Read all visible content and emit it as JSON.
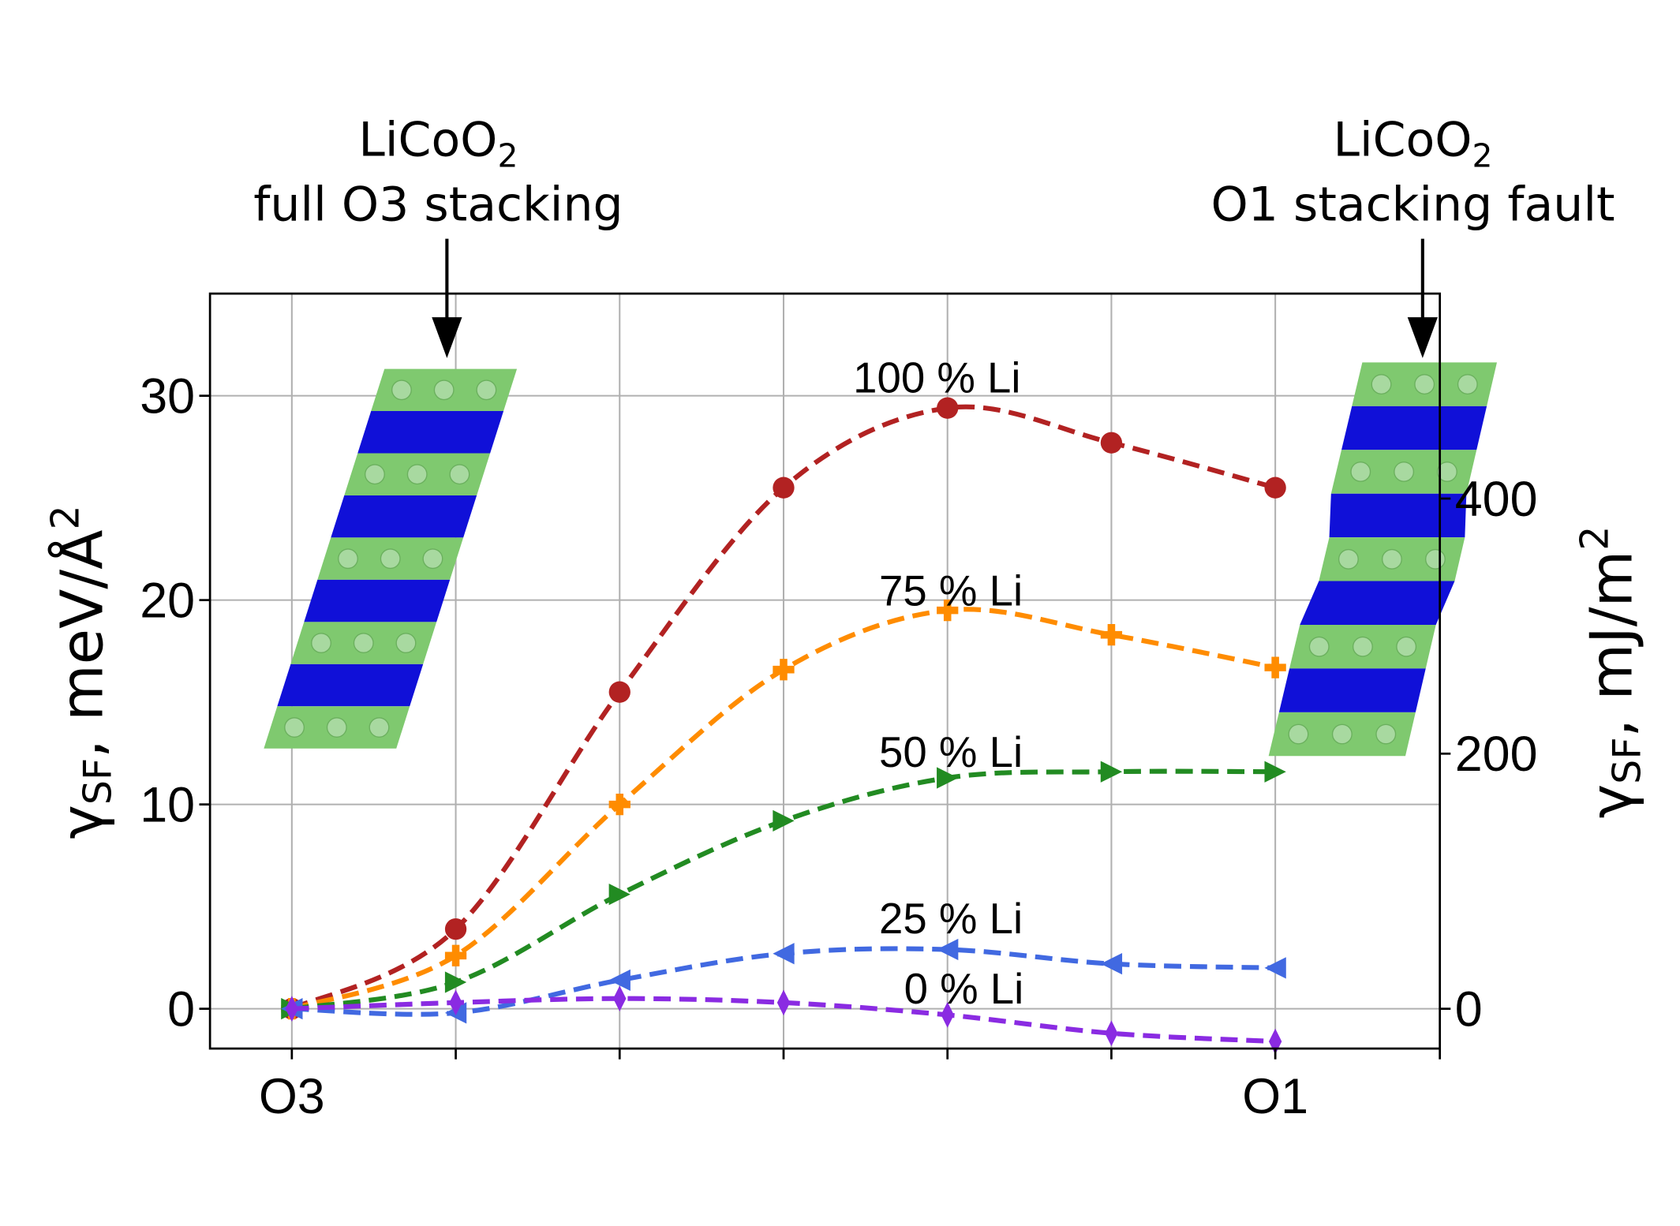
{
  "chart_data": {
    "type": "line",
    "x_tick_labels": [
      "O3",
      "",
      "",
      "",
      "",
      "",
      "O1"
    ],
    "x": [
      0,
      1,
      2,
      3,
      4,
      5,
      6
    ],
    "ylabel_left": {
      "main": "γ",
      "sub": "SF",
      "rest": ", meV/Å",
      "sup": "2"
    },
    "ylabel_right": {
      "main": "γ",
      "sub": "SF",
      "rest": ", mJ/m",
      "sup": "2"
    },
    "ylim": [
      -2,
      35
    ],
    "y_ticks_left": [
      0,
      10,
      20,
      30
    ],
    "y_ticks_right": [
      0,
      200,
      400
    ],
    "right_axis_factor": 16.02,
    "grid": true,
    "series": [
      {
        "name": "100 % Li",
        "color": "#b22222",
        "marker": "circle",
        "values": [
          0,
          3.9,
          15.5,
          25.5,
          29.4,
          27.7,
          25.5
        ]
      },
      {
        "name": "75 % Li",
        "color": "#ff8c00",
        "marker": "plus",
        "values": [
          0,
          2.6,
          10.0,
          16.6,
          19.5,
          18.3,
          16.7
        ]
      },
      {
        "name": "50 % Li",
        "color": "#228b22",
        "marker": "triangle-right",
        "values": [
          0,
          1.3,
          5.6,
          9.2,
          11.3,
          11.6,
          11.6
        ]
      },
      {
        "name": "25 % Li",
        "color": "#4169e1",
        "marker": "triangle-left",
        "values": [
          0,
          -0.2,
          1.4,
          2.7,
          2.9,
          2.2,
          2.0
        ]
      },
      {
        "name": "0 % Li",
        "color": "#8a2be2",
        "marker": "thin-diamond",
        "values": [
          0,
          0.3,
          0.5,
          0.3,
          -0.3,
          -1.2,
          -1.6
        ]
      }
    ],
    "annotations": [
      {
        "line1": "LiCoO",
        "sub": "2",
        "line2": "full O3 stacking"
      },
      {
        "line1": "LiCoO",
        "sub": "2",
        "line2": "O1 stacking fault"
      }
    ],
    "structure_colors": {
      "li_layer": "#7fc96f",
      "co_layer": "#1010d8"
    }
  }
}
